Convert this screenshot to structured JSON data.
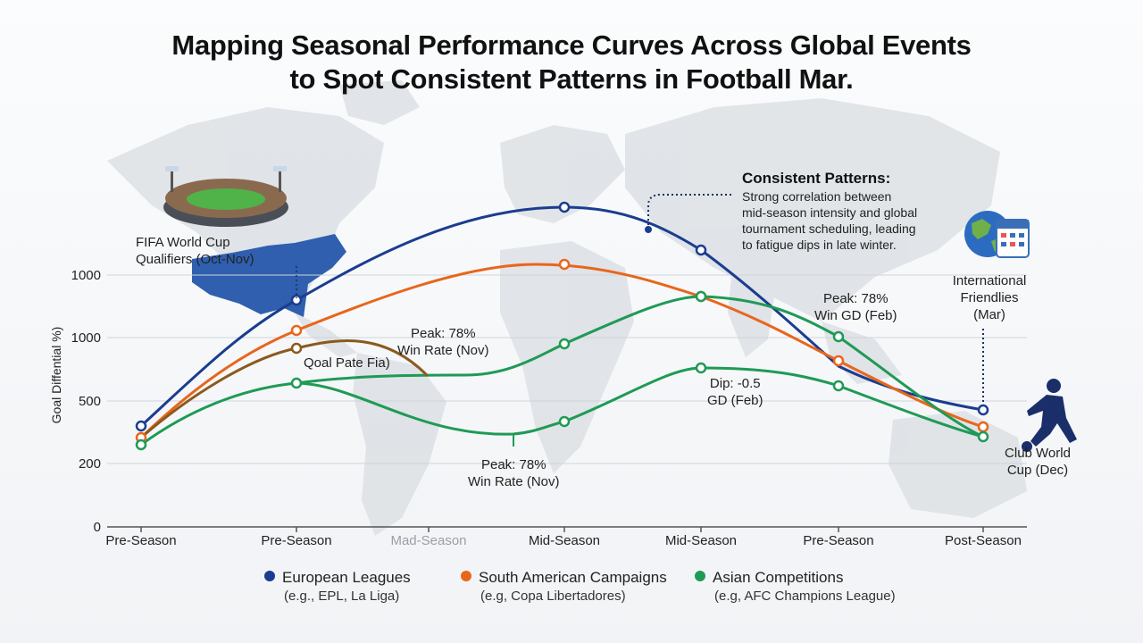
{
  "title_line1": "Mapping Seasonal Performance Curves Across Global Events",
  "title_line2": "to Spot Consistent Patterns in Football Mar.",
  "colors": {
    "european": "#1a3d8f",
    "south_american": "#e8661c",
    "asian": "#1f9a55",
    "asian_dip": "#8a5a1e",
    "map": "#d9dde2",
    "axis": "#444444"
  },
  "chart_data": {
    "type": "line",
    "ylabel": "Goal Diffential %)",
    "y_ticks": [
      "0",
      "200",
      "500",
      "1000",
      "1000"
    ],
    "categories": [
      "Pre-Season",
      "Pre-Season",
      "Mad-Season",
      "Mid-Season",
      "Mid-Season",
      "Pre-Season",
      "Post-Season"
    ],
    "grid": true,
    "series": [
      {
        "name": "European Leagues",
        "color": "#1a3d8f",
        "y_screen": [
          477,
          336,
          null,
          232,
          280,
          null,
          459
        ]
      },
      {
        "name": "South American Campaigns",
        "color": "#e8661c",
        "y_screen": [
          490,
          370,
          null,
          296,
          332,
          404,
          478
        ]
      },
      {
        "name": "Asian Competitions",
        "color": "#1f9a55",
        "y_screen": [
          498,
          429,
          null,
          385,
          332,
          377,
          489
        ]
      }
    ]
  },
  "legend": [
    {
      "label": "European Leagues",
      "sub": "(e.g., EPL, La Liga)",
      "color": "#1a3d8f"
    },
    {
      "label": "South American Campaigns",
      "sub": "(e.g, Copa Libertadores)",
      "color": "#e8661c"
    },
    {
      "label": "Asian Competitions",
      "sub": "(e.g, AFC Champions League)",
      "color": "#1f9a55"
    }
  ],
  "annotations": {
    "fifa": [
      "FIFA World Cup",
      "Qualifiers (Oct-Nov)"
    ],
    "goal_rate": "Qoal Pate Fia)",
    "peak_nov_top": [
      "Peak: 78%",
      "Win Rate (Nov)"
    ],
    "peak_nov_bottom": [
      "Peak: 78%",
      "Win Rate (Nov)"
    ],
    "dip_feb": [
      "Dip: -0.5",
      "GD (Feb)"
    ],
    "peak_feb": [
      "Peak: 78%",
      "Win GD (Feb)"
    ],
    "consistent_title": "Consistent Patterns:",
    "consistent_body": [
      "Strong correlation between",
      "mid-season intensity and global",
      "tournament scheduling, leading",
      "to fatigue dips in late winter."
    ],
    "friendlies": [
      "International",
      "Friendlies",
      "(Mar)"
    ],
    "club_world_cup": [
      "Club World",
      "Cup (Dec)"
    ]
  }
}
